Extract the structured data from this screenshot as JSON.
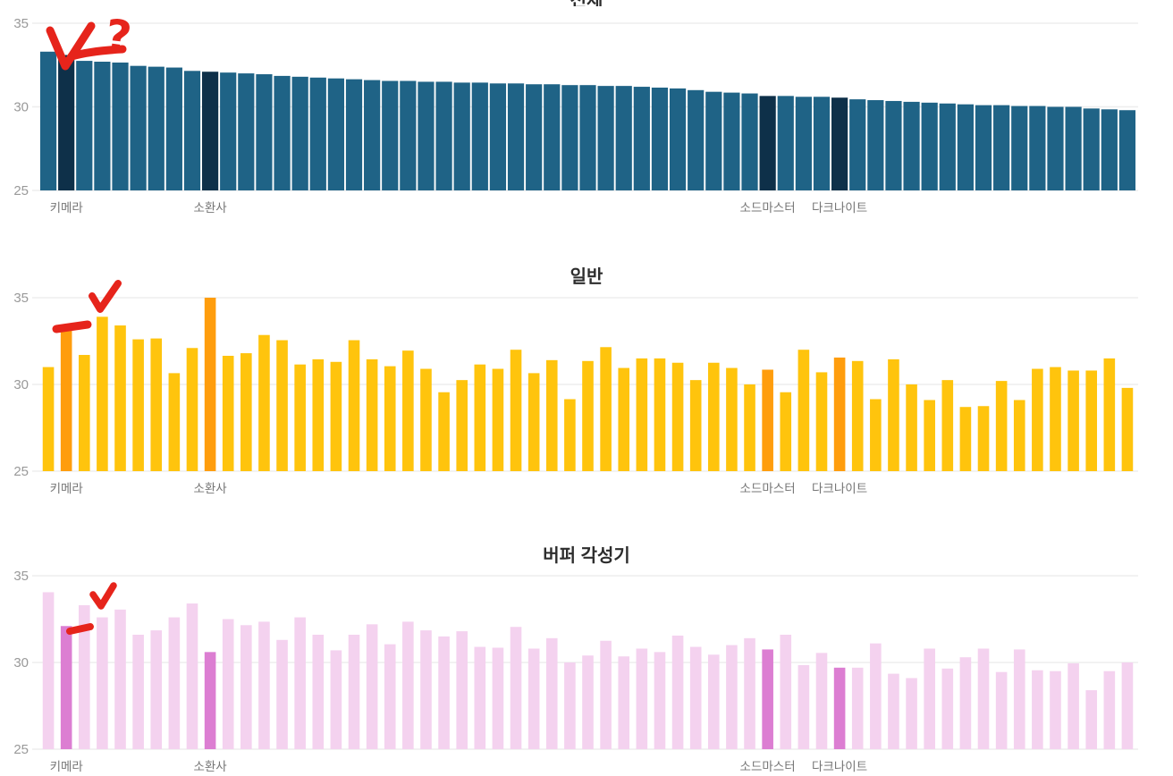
{
  "page": {
    "background": "#ffffff",
    "grid_color": "#ededed",
    "y_tick_color": "#999999",
    "x_label_color": "#757575",
    "title_color": "#2d2d2d"
  },
  "axis": {
    "y_min": 25,
    "y_max": 35,
    "y_ticks": [
      "35",
      "30",
      "25"
    ],
    "x_labels": [
      {
        "label": "키메라",
        "index": 1
      },
      {
        "label": "소환사",
        "index": 9
      },
      {
        "label": "소드마스터",
        "index": 40
      },
      {
        "label": "다크나이트",
        "index": 44
      }
    ]
  },
  "annotations": {
    "color": "#e6241b",
    "items": [
      {
        "chart": 0,
        "type": "check-mark"
      },
      {
        "chart": 0,
        "type": "dash-mark"
      },
      {
        "chart": 0,
        "type": "question-mark",
        "glyph": "?"
      },
      {
        "chart": 1,
        "type": "dash-mark"
      },
      {
        "chart": 1,
        "type": "check-mark"
      },
      {
        "chart": 2,
        "type": "dash-mark"
      },
      {
        "chart": 2,
        "type": "check-mark"
      }
    ]
  },
  "chart_data": [
    {
      "type": "bar",
      "title": "전체",
      "title_cut_off": true,
      "bar_color": "#1f6386",
      "highlight_color": "#0e3049",
      "highlight_indices": [
        1,
        9,
        40,
        44
      ],
      "ylim": [
        25,
        35
      ],
      "grid": true,
      "values": [
        33.3,
        33.1,
        32.75,
        32.7,
        32.65,
        32.45,
        32.4,
        32.35,
        32.15,
        32.1,
        32.05,
        32.0,
        31.95,
        31.85,
        31.8,
        31.75,
        31.7,
        31.65,
        31.6,
        31.55,
        31.55,
        31.5,
        31.5,
        31.45,
        31.45,
        31.4,
        31.4,
        31.35,
        31.35,
        31.3,
        31.3,
        31.25,
        31.25,
        31.2,
        31.15,
        31.1,
        31.0,
        30.9,
        30.85,
        30.8,
        30.65,
        30.65,
        30.6,
        30.6,
        30.55,
        30.45,
        30.4,
        30.35,
        30.3,
        30.25,
        30.2,
        30.15,
        30.1,
        30.1,
        30.05,
        30.05,
        30.0,
        30.0,
        29.9,
        29.85,
        29.8
      ]
    },
    {
      "type": "bar",
      "title": "일반",
      "bar_color": "#ffc40d",
      "highlight_color": "#ff9d0d",
      "highlight_indices": [
        1,
        9,
        40,
        44
      ],
      "ylim": [
        25,
        35
      ],
      "grid": true,
      "values": [
        31.0,
        33.3,
        31.7,
        33.9,
        33.4,
        32.6,
        32.65,
        30.65,
        32.1,
        35.0,
        31.65,
        31.8,
        32.85,
        32.55,
        31.15,
        31.45,
        31.3,
        32.55,
        31.45,
        31.05,
        31.95,
        30.9,
        29.55,
        30.25,
        31.15,
        30.9,
        32.0,
        30.65,
        31.4,
        29.15,
        31.35,
        32.15,
        30.95,
        31.5,
        31.5,
        31.25,
        30.25,
        31.25,
        30.95,
        30.0,
        30.85,
        29.55,
        32.0,
        30.7,
        31.55,
        31.35,
        29.15,
        31.45,
        30.0,
        29.1,
        30.25,
        28.7,
        28.75,
        30.2,
        29.1,
        30.9,
        31.0,
        30.8,
        30.8,
        31.5,
        29.8
      ]
    },
    {
      "type": "bar",
      "title": "버퍼 각성기",
      "bar_color": "#f4d2ef",
      "highlight_color": "#dc7ed2",
      "highlight_indices": [
        1,
        9,
        40,
        44
      ],
      "ylim": [
        25,
        35
      ],
      "grid": true,
      "values": [
        34.05,
        32.1,
        33.3,
        32.6,
        33.05,
        31.6,
        31.85,
        32.6,
        33.4,
        30.6,
        32.5,
        32.15,
        32.35,
        31.3,
        32.6,
        31.6,
        30.7,
        31.6,
        32.2,
        31.05,
        32.35,
        31.85,
        31.5,
        31.8,
        30.9,
        30.85,
        32.05,
        30.8,
        31.4,
        30.0,
        30.4,
        31.25,
        30.35,
        30.8,
        30.6,
        31.55,
        30.9,
        30.45,
        31.0,
        31.4,
        30.75,
        31.6,
        29.85,
        30.55,
        29.7,
        29.7,
        31.1,
        29.35,
        29.1,
        30.8,
        29.65,
        30.3,
        30.8,
        29.45,
        30.75,
        29.55,
        29.5,
        29.95,
        28.4,
        29.5,
        30.0
      ]
    }
  ]
}
